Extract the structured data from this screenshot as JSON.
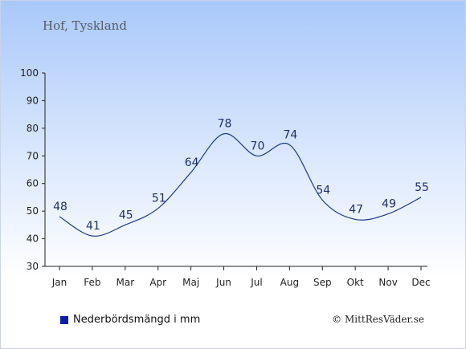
{
  "header": {
    "title": "Hof, Tyskland"
  },
  "legend": {
    "label": "Nederbördsmängd i mm"
  },
  "footer": {
    "copyright": "© MittResVäder.se"
  },
  "colors": {
    "line": "#1e3a8a",
    "label": "#1e2f6b",
    "swatch": "#0b1fa8",
    "axis": "#222222"
  },
  "chart_data": {
    "type": "line",
    "categories": [
      "Jan",
      "Feb",
      "Mar",
      "Apr",
      "Maj",
      "Jun",
      "Jul",
      "Aug",
      "Sep",
      "Okt",
      "Nov",
      "Dec"
    ],
    "series": [
      {
        "name": "Nederbördsmängd i mm",
        "values": [
          48,
          41,
          45,
          51,
          64,
          78,
          70,
          74,
          54,
          47,
          49,
          55
        ]
      }
    ],
    "ylim": [
      30,
      100
    ],
    "yticks": [
      30,
      40,
      50,
      60,
      70,
      80,
      90,
      100
    ],
    "grid": false,
    "legend_position": "bottom-left"
  }
}
